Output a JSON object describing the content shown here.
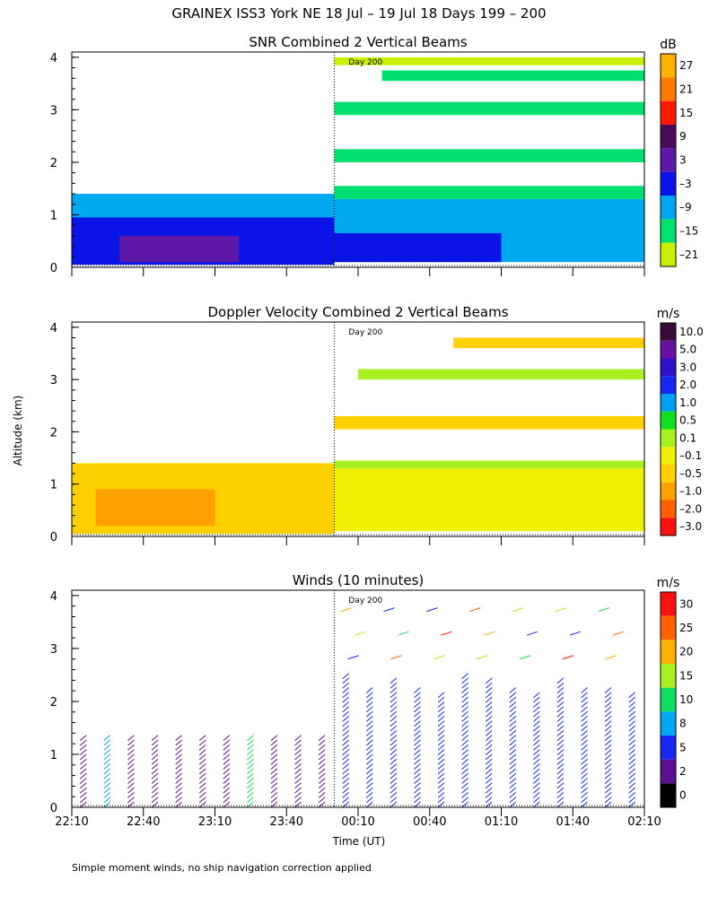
{
  "header": {
    "title": "GRAINEX ISS3 York NE  18 Jul – 19 Jul 18 Days 199 – 200",
    "y_axis_label": "Altitude (km)",
    "x_axis_label": "Time (UT)",
    "footnote": "Simple moment winds, no ship navigation correction applied",
    "day_marker": "Day 200"
  },
  "chart_data": [
    {
      "type": "heatmap",
      "title": "SNR Combined 2 Vertical Beams",
      "colorbar_unit": "dB",
      "colorbar_labels": [
        "27",
        "21",
        "15",
        "9",
        "3",
        "–3",
        "–9",
        "–15",
        "–21"
      ],
      "colorbar_colors": [
        "#ffb000",
        "#ff7800",
        "#ff1a00",
        "#4a0a55",
        "#5e18a8",
        "#0a14e6",
        "#00a8f0",
        "#00e070",
        "#c8f000"
      ],
      "ylim": [
        0,
        4.1
      ],
      "yticks": [
        "0",
        "1",
        "2",
        "3",
        "4"
      ],
      "xlim": [
        0,
        240
      ],
      "day_boundary_minutes": 110,
      "day_label": "Day 200",
      "layers": [
        {
          "start": 0,
          "end": 110,
          "bottom": 0.05,
          "top": 1.4,
          "color": "#00a8f0"
        },
        {
          "start": 0,
          "end": 110,
          "bottom": 0.05,
          "top": 0.95,
          "color": "#0a14e6"
        },
        {
          "start": 20,
          "end": 70,
          "bottom": 0.1,
          "top": 0.6,
          "color": "#5e18a8"
        },
        {
          "start": 110,
          "end": 240,
          "bottom": 0.1,
          "top": 1.3,
          "color": "#00a8f0"
        },
        {
          "start": 110,
          "end": 180,
          "bottom": 0.1,
          "top": 0.65,
          "color": "#0a14e6"
        },
        {
          "start": 110,
          "end": 240,
          "bottom": 1.3,
          "top": 1.55,
          "color": "#00e070"
        },
        {
          "start": 110,
          "end": 240,
          "bottom": 2.0,
          "top": 2.25,
          "color": "#00e070"
        },
        {
          "start": 110,
          "end": 240,
          "bottom": 2.9,
          "top": 3.15,
          "color": "#00e070"
        },
        {
          "start": 130,
          "end": 240,
          "bottom": 3.55,
          "top": 3.75,
          "color": "#00e070"
        },
        {
          "start": 110,
          "end": 240,
          "bottom": 3.85,
          "top": 4.0,
          "color": "#c8f000"
        }
      ]
    },
    {
      "type": "heatmap",
      "title": "Doppler Velocity Combined 2 Vertical Beams",
      "colorbar_unit": "m/s",
      "colorbar_labels": [
        "10.0",
        "5.0",
        "3.0",
        "2.0",
        "1.0",
        "0.5",
        "0.1",
        "–0.1",
        "–0.5",
        "–1.0",
        "–2.0",
        "–3.0"
      ],
      "colorbar_colors": [
        "#3a0a3a",
        "#6a10a0",
        "#3010c8",
        "#1428f0",
        "#00a0f0",
        "#10e020",
        "#a8f020",
        "#f0f000",
        "#ffd000",
        "#ffa000",
        "#ff6000",
        "#ff1010"
      ],
      "ylim": [
        0,
        4.1
      ],
      "yticks": [
        "0",
        "1",
        "2",
        "3",
        "4"
      ],
      "xlim": [
        0,
        240
      ],
      "day_boundary_minutes": 110,
      "day_label": "Day 200",
      "layers": [
        {
          "start": 0,
          "end": 110,
          "bottom": 0.05,
          "top": 1.4,
          "color": "#ffd000"
        },
        {
          "start": 10,
          "end": 60,
          "bottom": 0.2,
          "top": 0.9,
          "color": "#ffa000"
        },
        {
          "start": 110,
          "end": 240,
          "bottom": 0.1,
          "top": 1.3,
          "color": "#f0f000"
        },
        {
          "start": 110,
          "end": 240,
          "bottom": 1.3,
          "top": 1.45,
          "color": "#a8f020"
        },
        {
          "start": 110,
          "end": 240,
          "bottom": 2.05,
          "top": 2.3,
          "color": "#ffd000"
        },
        {
          "start": 120,
          "end": 240,
          "bottom": 3.0,
          "top": 3.2,
          "color": "#a8f020"
        },
        {
          "start": 160,
          "end": 240,
          "bottom": 3.6,
          "top": 3.8,
          "color": "#ffd000"
        }
      ]
    },
    {
      "type": "scatter",
      "title": "Winds (10 minutes)",
      "colorbar_unit": "m/s",
      "colorbar_labels": [
        "30",
        "25",
        "20",
        "15",
        "10",
        "8",
        "5",
        "2",
        "0"
      ],
      "colorbar_colors": [
        "#ff1010",
        "#ff6000",
        "#ffb000",
        "#a8f020",
        "#10e060",
        "#00a8f0",
        "#1428f0",
        "#5a1090",
        "#000000"
      ],
      "ylim": [
        0,
        4.1
      ],
      "yticks": [
        "0",
        "1",
        "2",
        "3",
        "4"
      ],
      "xlim": [
        0,
        240
      ],
      "xticks": [
        "22:10",
        "22:40",
        "23:10",
        "23:40",
        "00:10",
        "00:40",
        "01:10",
        "01:40",
        "02:10"
      ],
      "day_boundary_minutes": 110,
      "day_label": "Day 200",
      "profiles_minutes": [
        5,
        15,
        25,
        35,
        45,
        55,
        65,
        75,
        85,
        95,
        105,
        115,
        125,
        135,
        145,
        155,
        165,
        175,
        185,
        195,
        205,
        215,
        225,
        235
      ],
      "profile_top_km": [
        1.4,
        1.4,
        1.4,
        1.4,
        1.4,
        1.4,
        1.4,
        1.4,
        1.4,
        1.4,
        1.4,
        2.5,
        2.3,
        2.4,
        2.3,
        2.2,
        2.5,
        2.4,
        2.3,
        2.2,
        2.4,
        2.3,
        2.3,
        2.2
      ],
      "profile_speeds_ms": [
        4,
        8,
        4,
        4,
        4,
        4,
        4,
        10,
        4,
        4,
        4,
        5,
        5,
        5,
        5,
        5,
        5,
        5,
        5,
        5,
        5,
        5,
        5,
        5
      ],
      "upper_wind_speeds_ms": [
        5,
        15,
        20,
        25,
        10,
        5,
        15,
        30
      ]
    }
  ]
}
